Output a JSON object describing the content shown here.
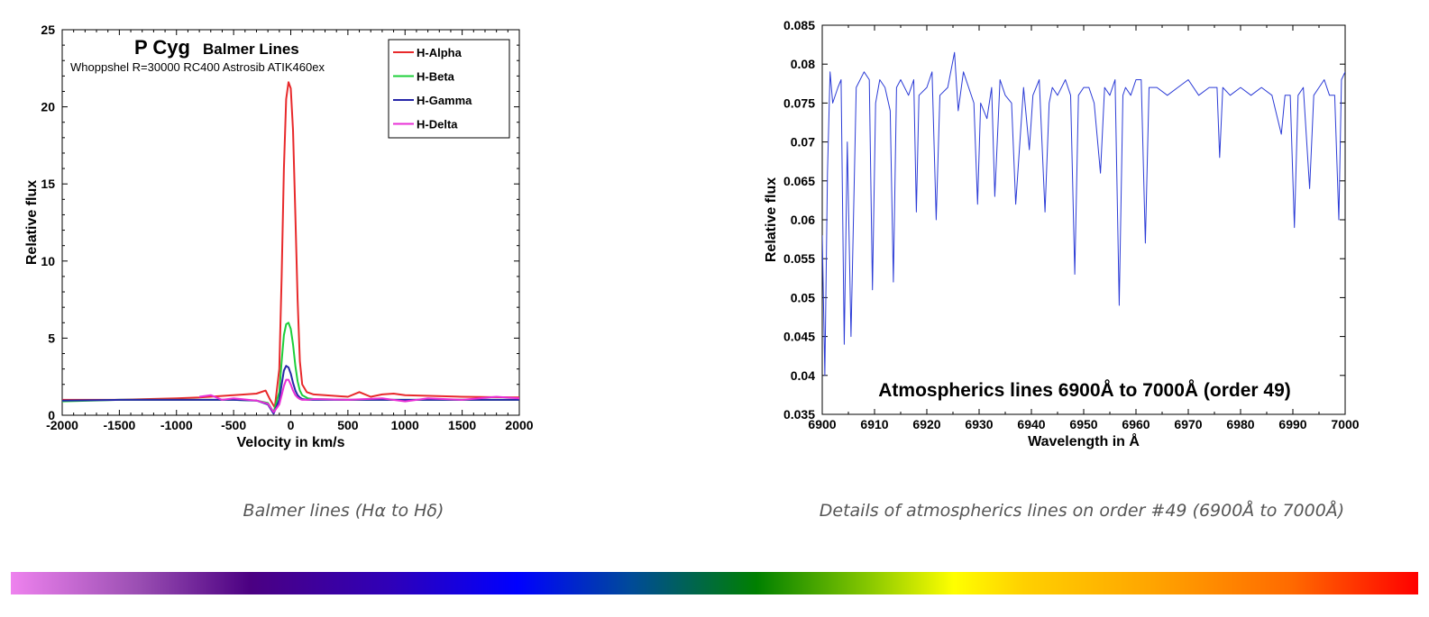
{
  "chart_data": [
    {
      "type": "line",
      "title": "P Cyg",
      "title_suffix": "Balmer Lines",
      "subtitle": "Whoppshel R=30000 RC400 Astrosib ATIK460ex",
      "xlabel": "Velocity in km/s",
      "ylabel": "Relative flux",
      "xlim": [
        -2000,
        2000
      ],
      "ylim": [
        0,
        25
      ],
      "xticks": [
        -2000,
        -1500,
        -1000,
        -500,
        0,
        500,
        1000,
        1500,
        2000
      ],
      "yticks": [
        0,
        5,
        10,
        15,
        20,
        25
      ],
      "grid": false,
      "legend_position": "top-right",
      "series": [
        {
          "name": "H-Alpha",
          "color": "#e8292b",
          "x": [
            -2000,
            -1500,
            -1000,
            -800,
            -500,
            -300,
            -220,
            -180,
            -140,
            -100,
            -80,
            -60,
            -40,
            -20,
            0,
            20,
            40,
            60,
            80,
            100,
            140,
            200,
            300,
            500,
            600,
            700,
            800,
            900,
            1000,
            1500,
            2000
          ],
          "y": [
            1.0,
            1.0,
            1.1,
            1.15,
            1.3,
            1.4,
            1.6,
            1.0,
            0.5,
            3.0,
            9.0,
            16.0,
            20.5,
            21.6,
            21.2,
            18.5,
            13.0,
            7.5,
            3.5,
            2.0,
            1.5,
            1.35,
            1.3,
            1.2,
            1.5,
            1.2,
            1.35,
            1.4,
            1.3,
            1.2,
            1.15
          ]
        },
        {
          "name": "H-Beta",
          "color": "#1ccf3a",
          "x": [
            -2000,
            -1500,
            -1000,
            -500,
            -300,
            -200,
            -150,
            -100,
            -80,
            -60,
            -40,
            -20,
            0,
            20,
            40,
            60,
            80,
            100,
            150,
            200,
            500,
            1000,
            1500,
            2000
          ],
          "y": [
            0.9,
            1.0,
            1.0,
            1.0,
            0.95,
            0.8,
            0.2,
            1.5,
            3.5,
            5.2,
            5.9,
            6.0,
            5.6,
            4.6,
            3.2,
            2.2,
            1.6,
            1.3,
            1.1,
            1.05,
            1.0,
            1.0,
            1.0,
            1.0
          ]
        },
        {
          "name": "H-Gamma",
          "color": "#2626a8",
          "x": [
            -2000,
            -1500,
            -1000,
            -500,
            -300,
            -200,
            -150,
            -100,
            -80,
            -60,
            -40,
            -20,
            0,
            20,
            40,
            60,
            80,
            100,
            150,
            200,
            500,
            1000,
            1500,
            2000
          ],
          "y": [
            0.95,
            1.0,
            1.0,
            1.0,
            0.95,
            0.7,
            0.1,
            1.0,
            2.0,
            2.9,
            3.2,
            3.1,
            2.7,
            2.1,
            1.6,
            1.3,
            1.15,
            1.05,
            1.0,
            1.0,
            1.0,
            1.0,
            1.0,
            1.0
          ]
        },
        {
          "name": "H-Delta",
          "color": "#e82fd6",
          "x": [
            -800,
            -700,
            -600,
            -500,
            -300,
            -200,
            -150,
            -100,
            -80,
            -60,
            -40,
            -20,
            0,
            20,
            40,
            60,
            80,
            100,
            150,
            200,
            500,
            800,
            1000,
            1200,
            1500,
            1800,
            2000
          ],
          "y": [
            1.2,
            1.3,
            1.0,
            1.1,
            0.95,
            0.75,
            0.2,
            0.7,
            1.3,
            1.9,
            2.3,
            2.3,
            2.0,
            1.6,
            1.3,
            1.15,
            1.05,
            1.0,
            1.0,
            1.05,
            1.0,
            1.1,
            0.9,
            1.1,
            1.0,
            1.2,
            1.1
          ]
        }
      ]
    },
    {
      "type": "line",
      "title": "Atmospherics lines 6900Å to 7000Å (order 49)",
      "xlabel": "Wavelength in Å",
      "ylabel": "Relative flux",
      "xlim": [
        6900,
        7000
      ],
      "ylim": [
        0.035,
        0.085
      ],
      "xticks": [
        6900,
        6910,
        6920,
        6930,
        6940,
        6950,
        6960,
        6970,
        6980,
        6990,
        7000
      ],
      "yticks": [
        0.035,
        0.04,
        0.045,
        0.05,
        0.055,
        0.06,
        0.065,
        0.07,
        0.075,
        0.08,
        0.085
      ],
      "grid": false,
      "series": [
        {
          "color": "#2b3bd6",
          "x": [
            6900,
            6900.5,
            6901.0,
            6901.5,
            6902,
            6903,
            6903.6,
            6904.2,
            6904.8,
            6905.5,
            6906.5,
            6908,
            6909.0,
            6909.6,
            6910.2,
            6911,
            6912,
            6913.0,
            6913.6,
            6914.2,
            6915,
            6916.5,
            6917.5,
            6918,
            6918.5,
            6920,
            6921.0,
            6921.8,
            6922.5,
            6924,
            6925.3,
            6926,
            6927,
            6928,
            6929.0,
            6929.7,
            6930.3,
            6931.5,
            6932.4,
            6933,
            6934,
            6935,
            6936.2,
            6937,
            6938.5,
            6939.6,
            6940.3,
            6941.5,
            6942.6,
            6943.4,
            6944,
            6945,
            6946.5,
            6947.5,
            6948.3,
            6949,
            6950,
            6951,
            6952,
            6953.2,
            6954,
            6955,
            6956,
            6956.8,
            6957.5,
            6958,
            6959,
            6960,
            6961.0,
            6961.8,
            6962.5,
            6964,
            6966,
            6968,
            6970,
            6972,
            6974,
            6975.5,
            6976,
            6976.6,
            6978,
            6980,
            6982,
            6984,
            6986,
            6987.8,
            6988.5,
            6989.5,
            6990.3,
            6991,
            6992,
            6993.2,
            6994,
            6995,
            6996,
            6997,
            6998,
            6998.8,
            6999.3,
            7000
          ],
          "y": [
            0.058,
            0.04,
            0.066,
            0.079,
            0.075,
            0.077,
            0.078,
            0.044,
            0.07,
            0.045,
            0.077,
            0.079,
            0.078,
            0.051,
            0.075,
            0.078,
            0.077,
            0.074,
            0.052,
            0.077,
            0.078,
            0.076,
            0.078,
            0.061,
            0.076,
            0.077,
            0.079,
            0.06,
            0.076,
            0.077,
            0.0815,
            0.074,
            0.079,
            0.077,
            0.075,
            0.062,
            0.075,
            0.073,
            0.077,
            0.063,
            0.078,
            0.076,
            0.075,
            0.062,
            0.077,
            0.069,
            0.076,
            0.078,
            0.061,
            0.075,
            0.077,
            0.076,
            0.078,
            0.076,
            0.053,
            0.076,
            0.077,
            0.077,
            0.075,
            0.066,
            0.077,
            0.076,
            0.078,
            0.049,
            0.076,
            0.077,
            0.076,
            0.078,
            0.078,
            0.057,
            0.077,
            0.077,
            0.076,
            0.077,
            0.078,
            0.076,
            0.077,
            0.077,
            0.068,
            0.077,
            0.076,
            0.077,
            0.076,
            0.077,
            0.076,
            0.071,
            0.076,
            0.076,
            0.059,
            0.076,
            0.077,
            0.064,
            0.076,
            0.077,
            0.078,
            0.076,
            0.076,
            0.06,
            0.078,
            0.079
          ]
        }
      ]
    }
  ],
  "captions": {
    "left": "Balmer lines (Hα to Hδ)",
    "right": "Details of atmospherics lines on order #49 (6900Å to 7000Å)"
  },
  "spectrum_bar": {
    "colors": [
      "#ee82ee",
      "#4b0082",
      "#0000ff",
      "#008000",
      "#ffff00",
      "#ffa500",
      "#ff0000"
    ]
  }
}
